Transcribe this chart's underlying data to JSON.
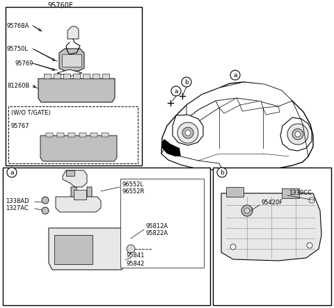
{
  "bg_color": "#ffffff",
  "lc": "#000000",
  "gray1": "#d8d8d8",
  "gray2": "#c0c0c0",
  "gray3": "#e8e8e8",
  "top_label": "95760E",
  "parts_top": [
    "95768A",
    "95750L",
    "95769",
    "81260B"
  ],
  "wo_tgate": "(W/O T/GATE)",
  "part_95767": "95767",
  "bottom_a_labels": [
    "1338AD",
    "1327AC",
    "96552L",
    "96552R",
    "95812A",
    "95822A",
    "95841",
    "95842"
  ],
  "bottom_b_labels": [
    "95420F",
    "1339CC"
  ],
  "callouts_a": "a",
  "callouts_b": "b"
}
